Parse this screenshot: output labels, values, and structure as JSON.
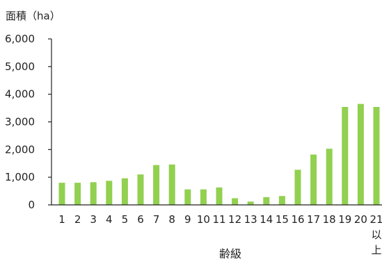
{
  "chart_data": {
    "type": "bar",
    "title": "",
    "ylabel": "面積（ha）",
    "xlabel": "齢級",
    "ylim": [
      0,
      6000
    ],
    "yticks": [
      0,
      1000,
      2000,
      3000,
      4000,
      5000,
      6000
    ],
    "ytick_labels": [
      "0",
      "1,000",
      "2,000",
      "3,000",
      "4,000",
      "5,000",
      "6,000"
    ],
    "categories": [
      "1",
      "2",
      "3",
      "4",
      "5",
      "6",
      "7",
      "8",
      "9",
      "10",
      "11",
      "12",
      "13",
      "14",
      "15",
      "16",
      "17",
      "18",
      "19",
      "20",
      "21以上"
    ],
    "values": [
      800,
      800,
      820,
      870,
      960,
      1100,
      1440,
      1460,
      560,
      560,
      630,
      240,
      120,
      280,
      320,
      1270,
      1820,
      2030,
      3540,
      3650,
      3540
    ],
    "grid": false,
    "legend": "none",
    "bar_color": "#92d050"
  }
}
